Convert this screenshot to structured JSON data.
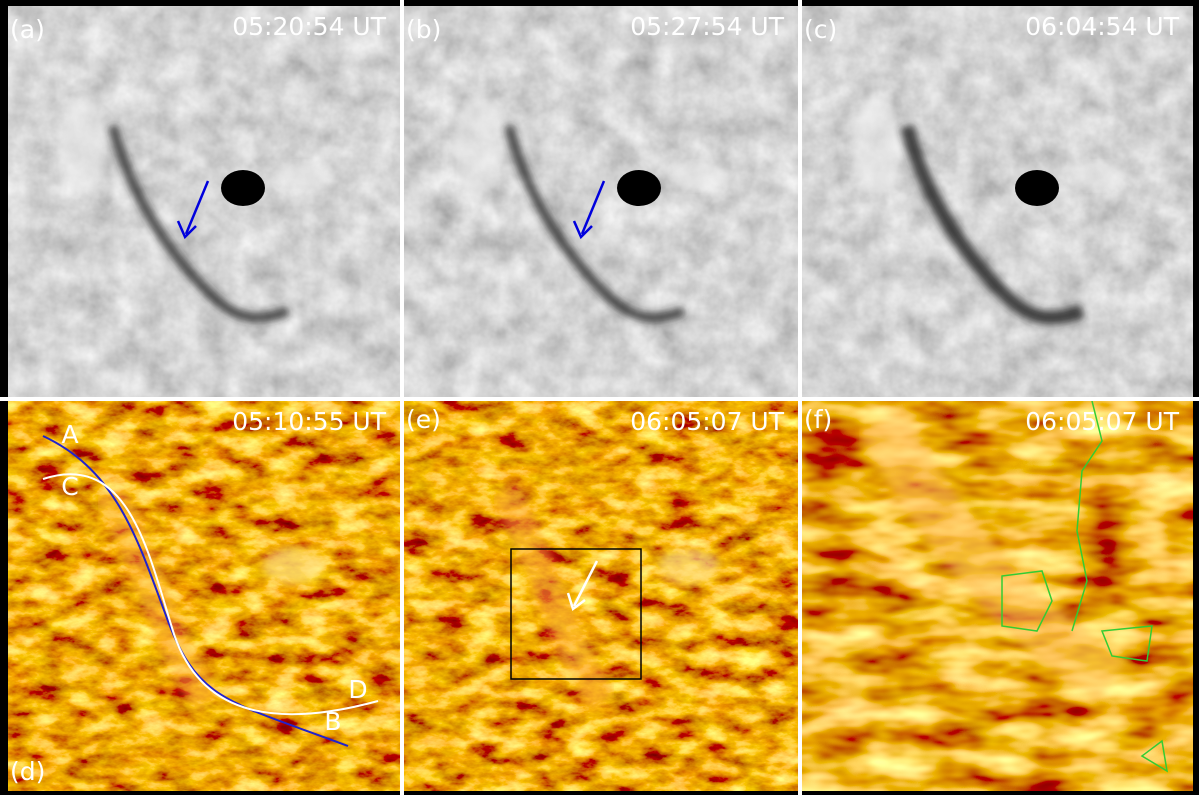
{
  "panels": [
    {
      "label": "(a)",
      "time": "05:20:54 UT"
    },
    {
      "label": "(b)",
      "time": "05:27:54 UT"
    },
    {
      "label": "(c)",
      "time": "06:04:54 UT"
    },
    {
      "label": "(d)",
      "time": "05:10:55 UT",
      "markers": [
        "A",
        "B",
        "C",
        "D"
      ]
    },
    {
      "label": "(e)",
      "time": "06:05:07 UT"
    },
    {
      "label": "(f)",
      "time": "06:05:07 UT"
    }
  ]
}
